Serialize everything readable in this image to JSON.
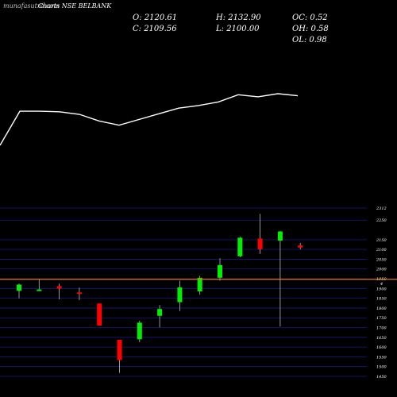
{
  "header": {
    "watermark": "munafasutra.com",
    "title": "Charts NSE BELBANK",
    "ohlc": {
      "open": "O: 2120.61",
      "high": "H: 2132.90",
      "oc": "OC: 0.52",
      "close": "C: 2109.56",
      "low": "L: 2100.00",
      "oh": "OH: 0.58",
      "ol": "OL: 0.98"
    }
  },
  "colors": {
    "background": "#000000",
    "up": "#00ee00",
    "down": "#ff0000",
    "grid": "#1a1a7a",
    "line": "#ffffff",
    "reference": "#e07a10"
  },
  "chart_data": {
    "type": "candlestick",
    "y_axis_ticks": [
      "2312",
      "2250",
      "2150",
      "2100",
      "2050",
      "2000",
      "1950",
      "1900",
      "1850",
      "1800",
      "1750",
      "1700",
      "1650",
      "1600",
      "1550",
      "1500",
      "1450"
    ],
    "y_axis_partial_label": "4",
    "ylim": [
      1450,
      2312
    ],
    "reference_level": 1947,
    "candles": [
      {
        "open": 1888,
        "high": 1925,
        "low": 1850,
        "close": 1920
      },
      {
        "open": 1890,
        "high": 1945,
        "low": 1888,
        "close": 1895
      },
      {
        "open": 1912,
        "high": 1925,
        "low": 1845,
        "close": 1900
      },
      {
        "open": 1880,
        "high": 1905,
        "low": 1840,
        "close": 1872
      },
      {
        "open": 1823,
        "high": 1823,
        "low": 1710,
        "close": 1710
      },
      {
        "open": 1637,
        "high": 1637,
        "low": 1468,
        "close": 1533
      },
      {
        "open": 1640,
        "high": 1735,
        "low": 1625,
        "close": 1725
      },
      {
        "open": 1760,
        "high": 1815,
        "low": 1701,
        "close": 1795
      },
      {
        "open": 1830,
        "high": 1940,
        "low": 1785,
        "close": 1906
      },
      {
        "open": 1885,
        "high": 1965,
        "low": 1868,
        "close": 1955
      },
      {
        "open": 1955,
        "high": 2055,
        "low": 1940,
        "close": 2020
      },
      {
        "open": 2065,
        "high": 2165,
        "low": 2060,
        "close": 2160
      },
      {
        "open": 2156,
        "high": 2282,
        "low": 2077,
        "close": 2101
      },
      {
        "open": 2145,
        "high": 2195,
        "low": 1705,
        "close": 2192
      },
      {
        "open": 2120.61,
        "high": 2132.9,
        "low": 2100.0,
        "close": 2109.56
      }
    ],
    "overlay_line": [
      0,
      0.66,
      0.66,
      0.65,
      0.6,
      0.47,
      0.39,
      0.5,
      0.61,
      0.72,
      0.77,
      0.84,
      0.98,
      0.94,
      1.0,
      0.96
    ]
  }
}
